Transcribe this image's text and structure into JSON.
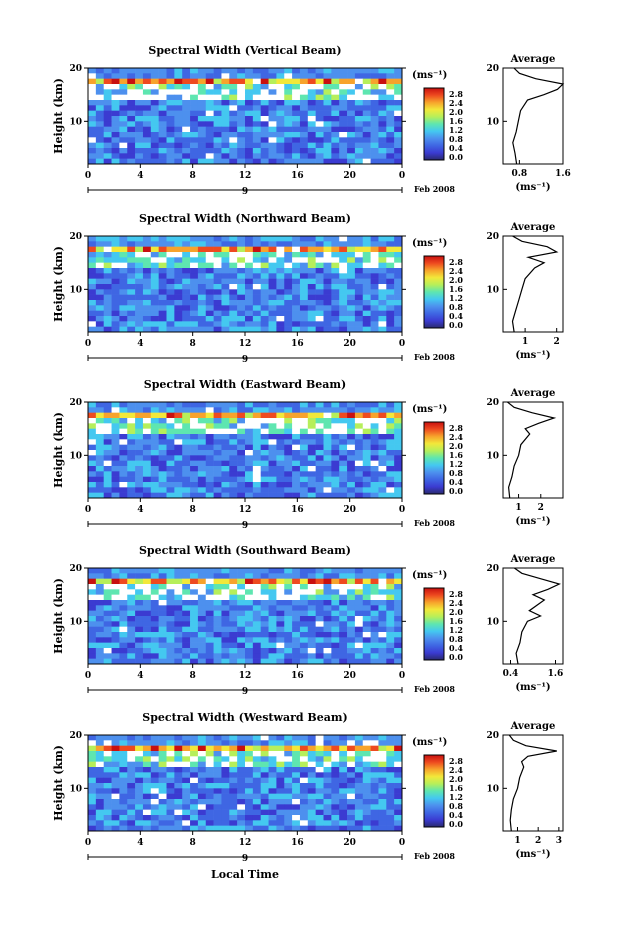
{
  "figure": {
    "x_axis_label": "Local Time",
    "date_label": "Feb 2008",
    "day_label": "9",
    "colorbar_unit": "(ms⁻¹)",
    "colorbar_ticks": [
      "0.0",
      "0.4",
      "0.8",
      "1.2",
      "1.6",
      "2.0",
      "2.4",
      "2.8"
    ],
    "avg_title": "Average",
    "avg_unit": "(ms⁻¹)",
    "y_axis_label": "Height (km)",
    "y_ticks": [
      "10",
      "20"
    ],
    "x_ticks": [
      "0",
      "4",
      "8",
      "12",
      "16",
      "20",
      "0"
    ],
    "colors": {
      "scale": [
        "#2a2a6e",
        "#3b3bd1",
        "#3f66e3",
        "#4d90ee",
        "#44c8f0",
        "#5ee6b0",
        "#b6ef5a",
        "#f2e83a",
        "#f7a32c",
        "#ee4a1f",
        "#c81010"
      ],
      "background": "#ffffff"
    }
  },
  "panels": [
    {
      "title": "Spectral Width (Vertical Beam)",
      "avg_ticks": [
        "0.8",
        "1.6"
      ]
    },
    {
      "title": "Spectral Width (Northward Beam)",
      "avg_ticks": [
        "1",
        "2"
      ]
    },
    {
      "title": "Spectral Width (Eastward Beam)",
      "avg_ticks": [
        "1",
        "2"
      ]
    },
    {
      "title": "Spectral Width (Southward Beam)",
      "avg_ticks": [
        "0.4",
        "1.6"
      ]
    },
    {
      "title": "Spectral Width (Westward Beam)",
      "avg_ticks": [
        "1",
        "2",
        "3"
      ]
    }
  ],
  "chart_data": [
    {
      "type": "heatmap",
      "title": "Spectral Width (Vertical Beam)",
      "xlabel": "",
      "ylabel": "Height (km)",
      "xlim": [
        0,
        24
      ],
      "ylim": [
        2,
        20
      ],
      "colorbar": {
        "label": "(ms⁻¹)",
        "range": [
          0.0,
          2.8
        ]
      },
      "profile": {
        "title": "Average",
        "xlabel": "(ms⁻¹)",
        "xlim": [
          0.5,
          1.6
        ],
        "height_km": [
          2,
          4,
          6,
          8,
          10,
          12,
          14,
          15,
          16,
          17,
          18,
          19,
          20
        ],
        "width": [
          0.75,
          0.72,
          0.68,
          0.74,
          0.78,
          0.82,
          0.95,
          1.25,
          1.5,
          1.6,
          1.1,
          0.8,
          0.7
        ]
      }
    },
    {
      "type": "heatmap",
      "title": "Spectral Width (Northward Beam)",
      "xlabel": "",
      "ylabel": "Height (km)",
      "xlim": [
        0,
        24
      ],
      "ylim": [
        2,
        20
      ],
      "colorbar": {
        "label": "(ms⁻¹)",
        "range": [
          0.0,
          2.8
        ]
      },
      "profile": {
        "title": "Average",
        "xlabel": "(ms⁻¹)",
        "xlim": [
          0.3,
          2.2
        ],
        "height_km": [
          2,
          4,
          6,
          8,
          10,
          12,
          14,
          15,
          16,
          17,
          18,
          19,
          20
        ],
        "width": [
          0.65,
          0.6,
          0.7,
          0.8,
          0.9,
          1.0,
          1.3,
          1.6,
          1.1,
          2.0,
          1.7,
          0.9,
          0.6
        ]
      }
    },
    {
      "type": "heatmap",
      "title": "Spectral Width (Eastward Beam)",
      "xlabel": "",
      "ylabel": "Height (km)",
      "xlim": [
        0,
        24
      ],
      "ylim": [
        2,
        20
      ],
      "colorbar": {
        "label": "(ms⁻¹)",
        "range": [
          0.0,
          2.8
        ]
      },
      "profile": {
        "title": "Average",
        "xlabel": "(ms⁻¹)",
        "xlim": [
          0.3,
          3.0
        ],
        "height_km": [
          2,
          4,
          6,
          8,
          10,
          12,
          14,
          15,
          16,
          17,
          18,
          19,
          20
        ],
        "width": [
          0.6,
          0.55,
          0.7,
          0.8,
          1.0,
          1.1,
          1.5,
          1.3,
          1.9,
          2.6,
          1.6,
          0.8,
          0.5
        ]
      }
    },
    {
      "type": "heatmap",
      "title": "Spectral Width (Southward Beam)",
      "xlabel": "",
      "ylabel": "Height (km)",
      "xlim": [
        0,
        24
      ],
      "ylim": [
        2,
        20
      ],
      "colorbar": {
        "label": "(ms⁻¹)",
        "range": [
          0.0,
          2.8
        ]
      },
      "profile": {
        "title": "Average",
        "xlabel": "(ms⁻¹)",
        "xlim": [
          0.2,
          1.8
        ],
        "height_km": [
          2,
          4,
          6,
          8,
          10,
          11,
          12,
          14,
          15,
          16,
          17,
          18,
          19,
          20
        ],
        "width": [
          0.6,
          0.55,
          0.65,
          0.7,
          0.85,
          1.2,
          0.9,
          1.3,
          1.0,
          1.4,
          1.7,
          1.2,
          0.7,
          0.5
        ]
      }
    },
    {
      "type": "heatmap",
      "title": "Spectral Width (Westward Beam)",
      "xlabel": "Local Time",
      "ylabel": "Height (km)",
      "xlim": [
        0,
        24
      ],
      "ylim": [
        2,
        20
      ],
      "colorbar": {
        "label": "(ms⁻¹)",
        "range": [
          0.0,
          2.8
        ]
      },
      "profile": {
        "title": "Average",
        "xlabel": "(ms⁻¹)",
        "xlim": [
          0.3,
          3.2
        ],
        "height_km": [
          2,
          4,
          6,
          8,
          10,
          12,
          14,
          15,
          16,
          17,
          18,
          19,
          20
        ],
        "width": [
          0.7,
          0.65,
          0.7,
          0.8,
          1.0,
          1.1,
          1.3,
          1.2,
          1.5,
          2.9,
          1.4,
          0.8,
          0.6
        ]
      }
    }
  ]
}
